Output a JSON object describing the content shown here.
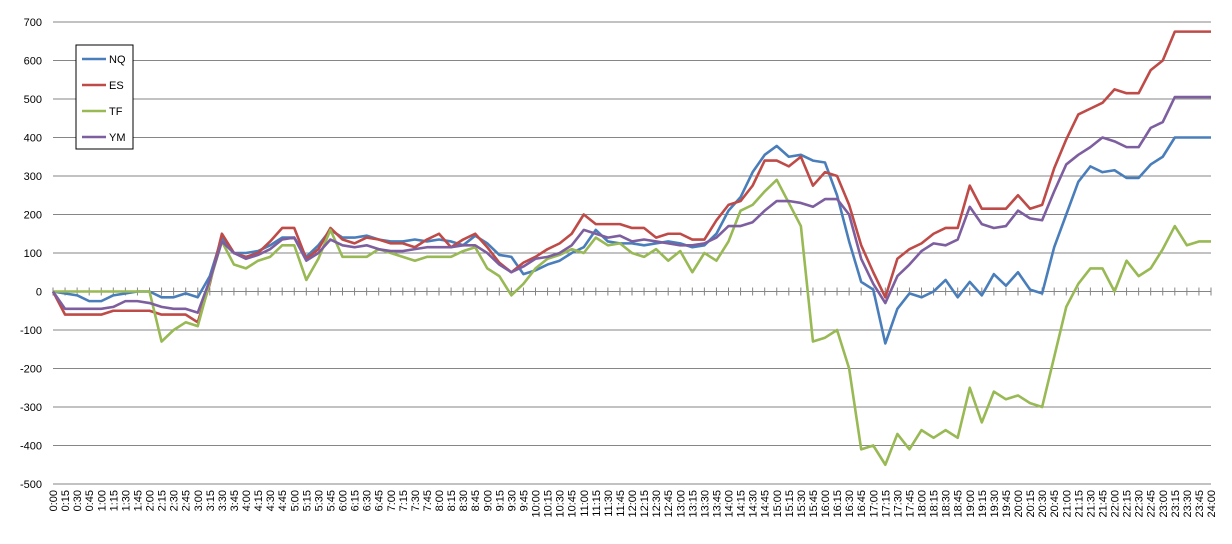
{
  "chart_data": {
    "type": "line",
    "categories": [
      "0:00",
      "0:15",
      "0:30",
      "0:45",
      "1:00",
      "1:15",
      "1:30",
      "1:45",
      "2:00",
      "2:15",
      "2:30",
      "2:45",
      "3:00",
      "3:15",
      "3:30",
      "3:45",
      "4:00",
      "4:15",
      "4:30",
      "4:45",
      "5:00",
      "5:15",
      "5:30",
      "5:45",
      "6:00",
      "6:15",
      "6:30",
      "6:45",
      "7:00",
      "7:15",
      "7:30",
      "7:45",
      "8:00",
      "8:15",
      "8:30",
      "8:45",
      "9:00",
      "9:15",
      "9:30",
      "9:45",
      "10:00",
      "10:15",
      "10:30",
      "10:45",
      "11:00",
      "11:15",
      "11:30",
      "11:45",
      "12:00",
      "12:15",
      "12:30",
      "12:45",
      "13:00",
      "13:15",
      "13:30",
      "13:45",
      "14:00",
      "14:15",
      "14:30",
      "14:45",
      "15:00",
      "15:15",
      "15:30",
      "15:45",
      "16:00",
      "16:15",
      "16:30",
      "16:45",
      "17:00",
      "17:15",
      "17:30",
      "17:45",
      "18:00",
      "18:15",
      "18:30",
      "18:45",
      "19:00",
      "19:15",
      "19:30",
      "19:45",
      "20:00",
      "20:15",
      "20:30",
      "20:45",
      "21:00",
      "21:15",
      "21:30",
      "21:45",
      "22:00",
      "22:15",
      "22:30",
      "22:45",
      "23:00",
      "23:15",
      "23:30",
      "23:45",
      "24:00"
    ],
    "series": [
      {
        "name": "NQ",
        "color": "#4a7ebb",
        "values": [
          0,
          -5,
          -10,
          -25,
          -25,
          -10,
          -5,
          0,
          0,
          -15,
          -15,
          -5,
          -15,
          40,
          140,
          100,
          100,
          105,
          120,
          140,
          140,
          90,
          120,
          160,
          140,
          140,
          145,
          135,
          130,
          130,
          135,
          130,
          135,
          130,
          120,
          145,
          125,
          95,
          90,
          45,
          55,
          70,
          80,
          100,
          115,
          160,
          130,
          125,
          125,
          120,
          125,
          130,
          125,
          115,
          120,
          150,
          210,
          245,
          310,
          355,
          378,
          350,
          355,
          340,
          335,
          250,
          130,
          25,
          5,
          -135,
          -45,
          -5,
          -15,
          0,
          30,
          -15,
          25,
          -10,
          45,
          15,
          50,
          5,
          -5,
          115,
          200,
          285,
          325,
          310,
          315,
          295,
          295,
          330,
          350,
          400,
          400,
          400,
          400
        ]
      },
      {
        "name": "ES",
        "color": "#be4b48",
        "values": [
          0,
          -60,
          -60,
          -60,
          -60,
          -50,
          -50,
          -50,
          -50,
          -60,
          -60,
          -60,
          -80,
          20,
          150,
          100,
          90,
          100,
          130,
          165,
          165,
          85,
          110,
          165,
          135,
          125,
          140,
          135,
          125,
          125,
          115,
          135,
          150,
          115,
          135,
          150,
          115,
          75,
          50,
          75,
          90,
          110,
          125,
          150,
          200,
          175,
          175,
          175,
          165,
          165,
          140,
          150,
          150,
          135,
          135,
          185,
          225,
          235,
          275,
          340,
          340,
          325,
          350,
          275,
          310,
          300,
          225,
          120,
          50,
          -15,
          85,
          110,
          125,
          150,
          165,
          165,
          275,
          215,
          215,
          215,
          250,
          215,
          225,
          320,
          395,
          460,
          475,
          490,
          525,
          515,
          515,
          575,
          600,
          675,
          675,
          675,
          675
        ]
      },
      {
        "name": "TF",
        "color": "#98b954",
        "values": [
          0,
          0,
          0,
          0,
          0,
          0,
          0,
          0,
          0,
          -130,
          -100,
          -80,
          -90,
          25,
          130,
          70,
          60,
          80,
          90,
          120,
          120,
          30,
          85,
          160,
          90,
          90,
          90,
          110,
          100,
          90,
          80,
          90,
          90,
          90,
          105,
          115,
          60,
          40,
          -10,
          20,
          60,
          85,
          95,
          110,
          100,
          140,
          120,
          125,
          100,
          90,
          110,
          80,
          105,
          50,
          100,
          80,
          130,
          210,
          225,
          260,
          290,
          230,
          170,
          -130,
          -120,
          -100,
          -200,
          -410,
          -400,
          -450,
          -370,
          -410,
          -360,
          -380,
          -360,
          -380,
          -250,
          -340,
          -260,
          -280,
          -270,
          -290,
          -300,
          -170,
          -40,
          20,
          60,
          60,
          0,
          80,
          40,
          60,
          110,
          170,
          120,
          130,
          130
        ]
      },
      {
        "name": "YM",
        "color": "#7d5fa0",
        "values": [
          0,
          -45,
          -45,
          -45,
          -45,
          -40,
          -25,
          -25,
          -30,
          -40,
          -45,
          -45,
          -55,
          30,
          130,
          100,
          85,
          95,
          110,
          135,
          140,
          80,
          100,
          135,
          120,
          115,
          120,
          110,
          105,
          105,
          110,
          115,
          115,
          115,
          120,
          120,
          100,
          70,
          50,
          65,
          85,
          90,
          100,
          120,
          160,
          150,
          140,
          145,
          130,
          135,
          130,
          125,
          120,
          120,
          125,
          140,
          170,
          170,
          180,
          210,
          235,
          235,
          230,
          220,
          240,
          240,
          200,
          85,
          20,
          -30,
          40,
          70,
          105,
          125,
          120,
          135,
          220,
          175,
          165,
          170,
          210,
          190,
          185,
          260,
          330,
          355,
          375,
          400,
          390,
          375,
          375,
          425,
          440,
          505,
          505,
          505,
          505
        ]
      }
    ],
    "ylim": [
      -500,
      700
    ],
    "yticks": [
      -500,
      -400,
      -300,
      -200,
      -100,
      0,
      100,
      200,
      300,
      400,
      500,
      600,
      700
    ],
    "grid": true,
    "legend": "left"
  }
}
